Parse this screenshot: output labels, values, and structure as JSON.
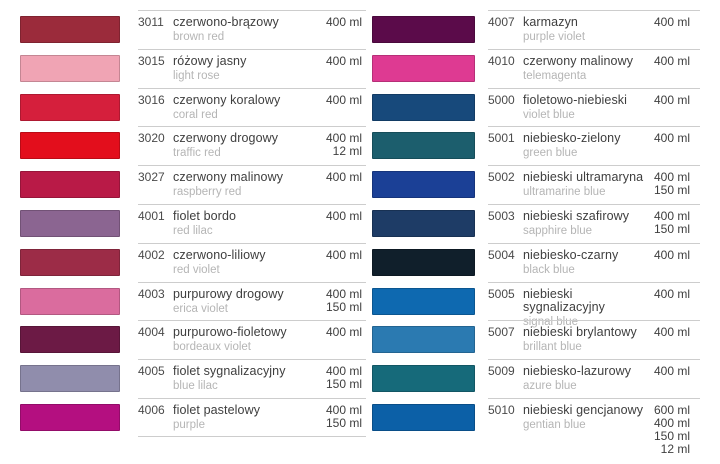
{
  "sheet": {
    "background": "#ffffff",
    "divider_color": "#cdcdcd",
    "code_text_color": "#4a4a4a",
    "name_text_color": "#3e3e3e",
    "subname_text_color": "#b5b5b5"
  },
  "columns": [
    {
      "name": "left-column",
      "rows": [
        {
          "code": "3011",
          "name_pl": "czerwono-brązowy",
          "name_en": "brown red",
          "volumes": [
            "400 ml"
          ],
          "swatch": "#9b2b3b"
        },
        {
          "code": "3015",
          "name_pl": "różowy jasny",
          "name_en": "light rose",
          "volumes": [
            "400 ml"
          ],
          "swatch": "#f0a4b4"
        },
        {
          "code": "3016",
          "name_pl": "czerwony koralowy",
          "name_en": "coral red",
          "volumes": [
            "400 ml"
          ],
          "swatch": "#d51f3c"
        },
        {
          "code": "3020",
          "name_pl": "czerwony drogowy",
          "name_en": "traffic red",
          "volumes": [
            "400 ml",
            "12 ml"
          ],
          "swatch": "#e30e1c"
        },
        {
          "code": "3027",
          "name_pl": "czerwony malinowy",
          "name_en": "raspberry red",
          "volumes": [
            "400 ml"
          ],
          "swatch": "#b91a47"
        },
        {
          "code": "4001",
          "name_pl": "fiolet bordo",
          "name_en": "red lilac",
          "volumes": [
            "400 ml"
          ],
          "swatch": "#8b6591"
        },
        {
          "code": "4002",
          "name_pl": "czerwono-liliowy",
          "name_en": "red violet",
          "volumes": [
            "400 ml"
          ],
          "swatch": "#9c2c47"
        },
        {
          "code": "4003",
          "name_pl": "purpurowy drogowy",
          "name_en": "erica violet",
          "volumes": [
            "400 ml",
            "150 ml"
          ],
          "swatch": "#da6c9e"
        },
        {
          "code": "4004",
          "name_pl": "purpurowo-fioletowy",
          "name_en": "bordeaux violet",
          "volumes": [
            "400 ml"
          ],
          "swatch": "#6c1a45"
        },
        {
          "code": "4005",
          "name_pl": "fiolet sygnalizacyjny",
          "name_en": "blue lilac",
          "volumes": [
            "400 ml",
            "150 ml"
          ],
          "swatch": "#908dac"
        },
        {
          "code": "4006",
          "name_pl": "fiolet pastelowy",
          "name_en": "purple",
          "volumes": [
            "400 ml",
            "150 ml"
          ],
          "swatch": "#b40f80"
        }
      ]
    },
    {
      "name": "right-column",
      "rows": [
        {
          "code": "4007",
          "name_pl": "karmazyn",
          "name_en": "purple violet",
          "volumes": [
            "400 ml"
          ],
          "swatch": "#5b0b4a"
        },
        {
          "code": "4010",
          "name_pl": "czerwony malinowy",
          "name_en": "telemagenta",
          "volumes": [
            "400 ml"
          ],
          "swatch": "#de3a92"
        },
        {
          "code": "5000",
          "name_pl": "fioletowo-niebieski",
          "name_en": "violet blue",
          "volumes": [
            "400 ml"
          ],
          "swatch": "#17497b"
        },
        {
          "code": "5001",
          "name_pl": "niebiesko-zielony",
          "name_en": "green blue",
          "volumes": [
            "400 ml"
          ],
          "swatch": "#1c5e6d"
        },
        {
          "code": "5002",
          "name_pl": "niebieski ultramaryna",
          "name_en": "ultramarine blue",
          "volumes": [
            "400 ml",
            "150 ml"
          ],
          "swatch": "#1b4096"
        },
        {
          "code": "5003",
          "name_pl": "niebieski szafirowy",
          "name_en": "sapphire blue",
          "volumes": [
            "400 ml",
            "150 ml"
          ],
          "swatch": "#1e3c66"
        },
        {
          "code": "5004",
          "name_pl": "niebiesko-czarny",
          "name_en": "black blue",
          "volumes": [
            "400 ml"
          ],
          "swatch": "#101f2b"
        },
        {
          "code": "5005",
          "name_pl": "niebieski sygnalizacyjny",
          "name_en": "signal blue",
          "volumes": [
            "400 ml"
          ],
          "swatch": "#0e69b0"
        },
        {
          "code": "5007",
          "name_pl": "niebieski brylantowy",
          "name_en": "brillant blue",
          "volumes": [
            "400 ml"
          ],
          "swatch": "#2b7ab1"
        },
        {
          "code": "5009",
          "name_pl": "niebiesko-lazurowy",
          "name_en": "azure blue",
          "volumes": [
            "400 ml"
          ],
          "swatch": "#166a7a"
        },
        {
          "code": "5010",
          "name_pl": "niebieski gencjanowy",
          "name_en": "gentian blue",
          "volumes": [
            "600 ml",
            "400 ml",
            "150 ml",
            "12 ml"
          ],
          "swatch": "#0c60a7"
        }
      ]
    }
  ]
}
